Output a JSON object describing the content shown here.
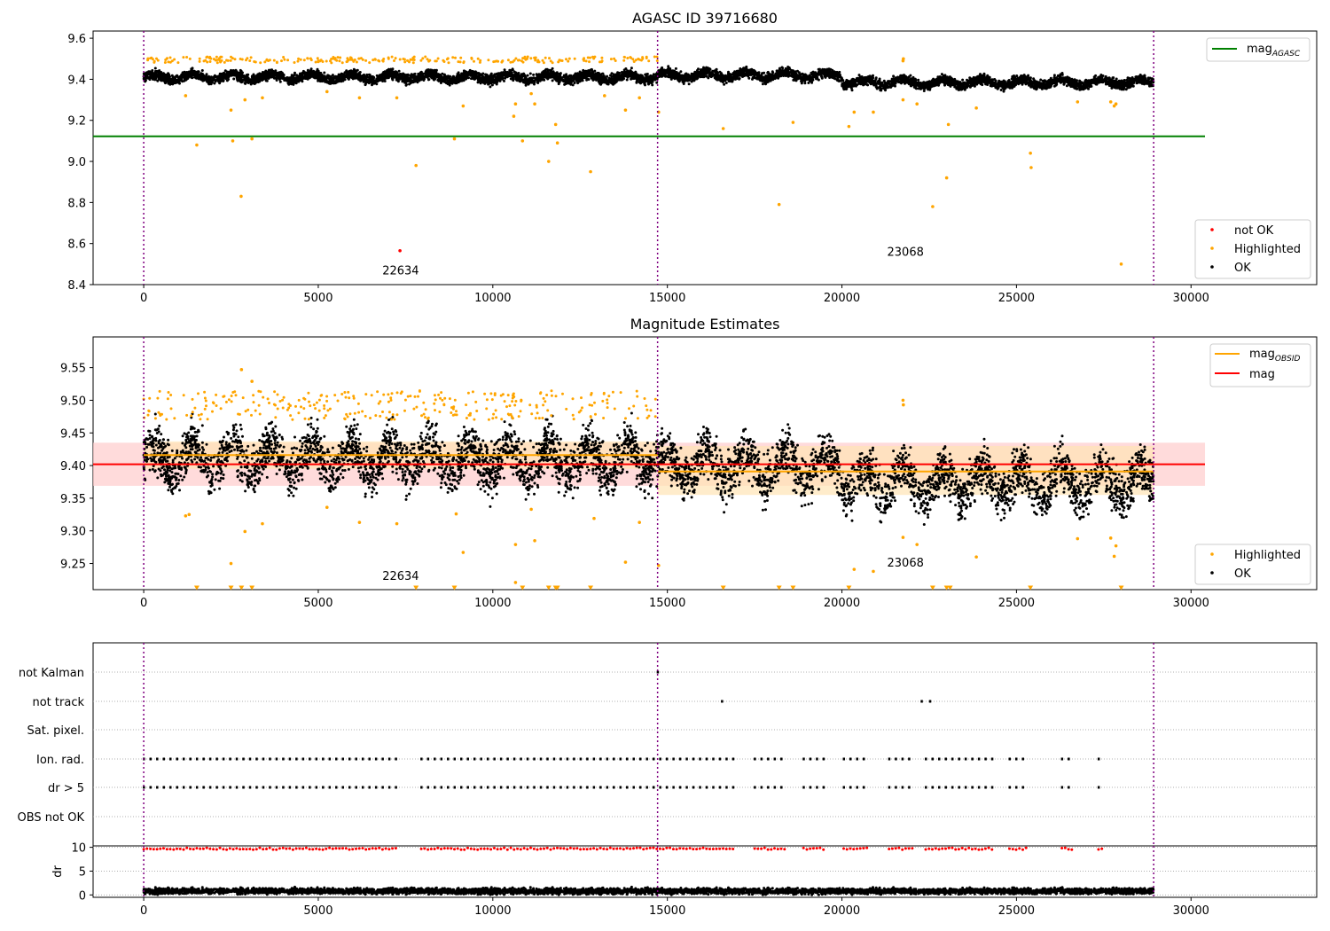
{
  "colors": {
    "ok": "#000000",
    "highlighted": "#ffa500",
    "not_ok": "#ff0000",
    "mag_agasc": "#008000",
    "mag_obsid": "#ffa500",
    "mag": "#ff0000",
    "obsid_divider": "#800080",
    "mag_band": "#ffcccc",
    "grid": "#b0b0b0"
  },
  "chart_data": [
    {
      "type": "scatter",
      "title": "AGASC ID 39716680",
      "xlim": [
        -1450,
        33600
      ],
      "ylim": [
        8.4,
        9.635
      ],
      "xticks": [
        0,
        5000,
        10000,
        15000,
        20000,
        25000,
        30000
      ],
      "xtick_labels": [
        "0",
        "5000",
        "10000",
        "15000",
        "20000",
        "25000",
        "30000"
      ],
      "yticks": [
        8.4,
        8.6,
        8.8,
        9.0,
        9.2,
        9.4,
        9.6
      ],
      "ytick_labels": [
        "8.4",
        "8.6",
        "8.8",
        "9.0",
        "9.2",
        "9.4",
        "9.6"
      ],
      "obsid_boundaries": [
        0,
        14720,
        28930
      ],
      "annotations": [
        {
          "text": "22634",
          "x": 7360,
          "y": 8.45
        },
        {
          "text": "23068",
          "x": 21820,
          "y": 8.54
        }
      ],
      "lines": [
        {
          "name": "mag_AGASC",
          "label_main": "mag",
          "label_sub": "AGASC",
          "color": "#008000",
          "x": [
            -1450,
            30400
          ],
          "y": [
            9.122,
            9.122
          ]
        }
      ],
      "series": [
        {
          "name": "not OK",
          "color": "#ff0000",
          "points": [
            [
              7340,
              8.565
            ]
          ]
        },
        {
          "name": "Highlighted",
          "color": "#ffa500",
          "points": [
            [
              1200,
              9.32
            ],
            [
              1520,
              9.08
            ],
            [
              2500,
              9.25
            ],
            [
              2550,
              9.1
            ],
            [
              2790,
              8.83
            ],
            [
              2900,
              9.3
            ],
            [
              3100,
              9.11
            ],
            [
              3400,
              9.31
            ],
            [
              5250,
              9.34
            ],
            [
              6180,
              9.31
            ],
            [
              7250,
              9.31
            ],
            [
              7800,
              8.98
            ],
            [
              8900,
              9.11
            ],
            [
              9150,
              9.27
            ],
            [
              10600,
              9.22
            ],
            [
              10650,
              9.28
            ],
            [
              10850,
              9.1
            ],
            [
              11100,
              9.33
            ],
            [
              11200,
              9.28
            ],
            [
              11600,
              9.0
            ],
            [
              11800,
              9.18
            ],
            [
              11850,
              9.09
            ],
            [
              12800,
              8.95
            ],
            [
              13200,
              9.32
            ],
            [
              13800,
              9.25
            ],
            [
              14200,
              9.31
            ],
            [
              14750,
              9.24
            ],
            [
              16600,
              9.16
            ],
            [
              18200,
              8.79
            ],
            [
              18600,
              9.19
            ],
            [
              20200,
              9.17
            ],
            [
              20350,
              9.24
            ],
            [
              20900,
              9.24
            ],
            [
              21750,
              9.3
            ],
            [
              22150,
              9.28
            ],
            [
              22600,
              8.78
            ],
            [
              23000,
              8.92
            ],
            [
              23050,
              9.18
            ],
            [
              23850,
              9.26
            ],
            [
              25400,
              9.04
            ],
            [
              25420,
              8.97
            ],
            [
              26750,
              9.29
            ],
            [
              27700,
              9.29
            ],
            [
              27800,
              9.27
            ],
            [
              27850,
              9.28
            ],
            [
              28000,
              8.5
            ],
            [
              21750,
              9.49
            ],
            [
              21760,
              9.5
            ]
          ]
        }
      ],
      "legends": [
        {
          "position": "top-right",
          "entries": [
            {
              "label": "mag",
              "sub": "AGASC",
              "kind": "line",
              "color": "#008000"
            }
          ]
        },
        {
          "position": "lower-right",
          "entries": [
            {
              "label": "not OK",
              "kind": "marker",
              "color": "#ff0000"
            },
            {
              "label": "Highlighted",
              "kind": "marker",
              "color": "#ffa500"
            },
            {
              "label": "OK",
              "kind": "marker",
              "color": "#000000"
            }
          ]
        }
      ],
      "ok_band": {
        "x_range": [
          0,
          28930
        ],
        "segments": [
          [
            0,
            14720,
            9.41
          ],
          [
            14720,
            20000,
            9.42
          ],
          [
            20000,
            28930,
            9.385
          ]
        ],
        "spread": 0.035
      }
    },
    {
      "type": "scatter",
      "title": "Magnitude Estimates",
      "xlim": [
        -1450,
        33600
      ],
      "ylim": [
        9.21,
        9.597
      ],
      "xticks": [
        0,
        5000,
        10000,
        15000,
        20000,
        25000,
        30000
      ],
      "xtick_labels": [
        "0",
        "5000",
        "10000",
        "15000",
        "20000",
        "25000",
        "30000"
      ],
      "yticks": [
        9.25,
        9.3,
        9.35,
        9.4,
        9.45,
        9.5,
        9.55
      ],
      "ytick_labels": [
        "9.25",
        "9.30",
        "9.35",
        "9.40",
        "9.45",
        "9.50",
        "9.55"
      ],
      "obsid_boundaries": [
        0,
        14720,
        28930
      ],
      "annotations": [
        {
          "text": "22634",
          "x": 7360,
          "y": 9.225
        },
        {
          "text": "23068",
          "x": 21820,
          "y": 9.245
        }
      ],
      "lines": [
        {
          "name": "mag",
          "color": "#ff0000",
          "x": [
            -1450,
            30400
          ],
          "y": [
            9.402,
            9.402
          ]
        },
        {
          "name": "mag_OBSID",
          "color": "#ffa500",
          "x": [
            0,
            14720
          ],
          "y": [
            9.416,
            9.416
          ]
        },
        {
          "name": "mag_OBSID",
          "color": "#ffa500",
          "x": [
            14720,
            28930
          ],
          "y": [
            9.391,
            9.391
          ]
        }
      ],
      "bands": [
        {
          "color": "#ffcccc",
          "x": [
            -1450,
            30400
          ],
          "y": [
            9.369,
            9.435
          ]
        },
        {
          "color": "#ffe4b5",
          "x": [
            0,
            14720
          ],
          "y": [
            9.395,
            9.437
          ]
        },
        {
          "color": "#ffe4b5",
          "x": [
            14720,
            28930
          ],
          "y": [
            9.355,
            9.43
          ]
        }
      ],
      "series": [
        {
          "name": "Highlighted",
          "color": "#ffa500",
          "points": [
            [
              1200,
              9.323
            ],
            [
              1300,
              9.325
            ],
            [
              2500,
              9.25
            ],
            [
              2800,
              9.547
            ],
            [
              2900,
              9.299
            ],
            [
              3100,
              9.529
            ],
            [
              3400,
              9.311
            ],
            [
              5250,
              9.336
            ],
            [
              6180,
              9.313
            ],
            [
              7250,
              9.311
            ],
            [
              8950,
              9.326
            ],
            [
              9150,
              9.267
            ],
            [
              10650,
              9.279
            ],
            [
              10650,
              9.221
            ],
            [
              11100,
              9.333
            ],
            [
              11200,
              9.285
            ],
            [
              12900,
              9.319
            ],
            [
              13800,
              9.252
            ],
            [
              14200,
              9.313
            ],
            [
              14750,
              9.247
            ],
            [
              21750,
              9.29
            ],
            [
              21750,
              9.5
            ],
            [
              21760,
              9.493
            ],
            [
              22150,
              9.279
            ],
            [
              23850,
              9.26
            ],
            [
              26750,
              9.288
            ],
            [
              27700,
              9.289
            ],
            [
              27850,
              9.277
            ],
            [
              27800,
              9.261
            ],
            [
              20350,
              9.241
            ],
            [
              20900,
              9.238
            ]
          ]
        },
        {
          "name": "Highlighted (off scale)",
          "color": "#ffa500",
          "marker": "triangle-down",
          "points": [
            [
              1520,
              9.212
            ],
            [
              2500,
              9.212
            ],
            [
              2800,
              9.212
            ],
            [
              3100,
              9.212
            ],
            [
              7800,
              9.212
            ],
            [
              8900,
              9.212
            ],
            [
              10850,
              9.212
            ],
            [
              11600,
              9.212
            ],
            [
              11800,
              9.212
            ],
            [
              11850,
              9.212
            ],
            [
              12800,
              9.212
            ],
            [
              16600,
              9.212
            ],
            [
              18200,
              9.212
            ],
            [
              18600,
              9.212
            ],
            [
              20200,
              9.212
            ],
            [
              22600,
              9.212
            ],
            [
              23000,
              9.212
            ],
            [
              23100,
              9.212
            ],
            [
              25400,
              9.212
            ],
            [
              28000,
              9.212
            ]
          ]
        }
      ],
      "legends": [
        {
          "position": "top-right",
          "entries": [
            {
              "label": "mag",
              "sub": "OBSID",
              "kind": "line",
              "color": "#ffa500"
            },
            {
              "label": "mag",
              "kind": "line",
              "color": "#ff0000"
            }
          ]
        },
        {
          "position": "lower-right",
          "entries": [
            {
              "label": "Highlighted",
              "kind": "marker",
              "color": "#ffa500"
            },
            {
              "label": "OK",
              "kind": "marker",
              "color": "#000000"
            }
          ]
        }
      ],
      "ok_band": {
        "x_range": [
          0,
          28930
        ],
        "segments": [
          [
            0,
            14720,
            9.41
          ],
          [
            14720,
            20000,
            9.4
          ],
          [
            20000,
            28930,
            9.375
          ]
        ],
        "spread": 0.055
      }
    },
    {
      "type": "scatter",
      "title": "",
      "xlim": [
        -1450,
        33600
      ],
      "flag_rows": [
        "not Kalman",
        "not track",
        "Sat. pixel.",
        "Ion. rad.",
        "dr > 5",
        "OBS not OK"
      ],
      "obsid_boundaries": [
        0,
        14720,
        28930
      ],
      "flag_points": {
        "not Kalman": [
          14720
        ],
        "not track": [
          16560,
          22280,
          22520
        ],
        "Sat. pixel.": [],
        "Ion. rad.": "periodic",
        "dr > 5": "periodic",
        "OBS not OK": []
      },
      "periodic_flags": {
        "ranges": [
          [
            0,
            7300
          ],
          [
            7950,
            16950
          ],
          [
            17500,
            18400
          ],
          [
            18900,
            19500
          ],
          [
            20050,
            20800
          ],
          [
            21350,
            22100
          ],
          [
            22400,
            24300
          ],
          [
            24800,
            25300
          ],
          [
            26300,
            26600
          ],
          [
            27350,
            27500
          ]
        ],
        "step": 190
      }
    },
    {
      "type": "scatter",
      "title": "",
      "ylabel": "dr",
      "xlim": [
        -1450,
        33600
      ],
      "ylim": [
        -0.5,
        10.3
      ],
      "xticks": [
        0,
        5000,
        10000,
        15000,
        20000,
        25000,
        30000
      ],
      "xtick_labels": [
        "0",
        "5000",
        "10000",
        "15000",
        "20000",
        "25000",
        "30000"
      ],
      "yticks": [
        0,
        5,
        10
      ],
      "ytick_labels": [
        "0",
        "5",
        "10"
      ],
      "obsid_boundaries": [
        0,
        14720,
        28930
      ],
      "series": [
        {
          "name": "dr > 5 (capped)",
          "color": "#ff0000",
          "y": 9.7
        },
        {
          "name": "dr ok",
          "color": "#000000",
          "mean": 0.8,
          "spread": 0.9
        }
      ]
    }
  ]
}
